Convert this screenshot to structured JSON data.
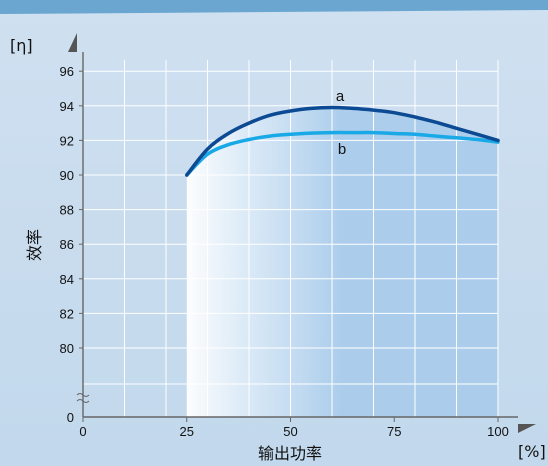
{
  "chart_data": {
    "type": "line",
    "title": "",
    "xlabel": "输出功率",
    "ylabel": "效率",
    "x_unit": "[%]",
    "y_unit": "[η]",
    "xlim": [
      0,
      100
    ],
    "ylim": [
      78,
      96
    ],
    "x_ticks": [
      0,
      25,
      50,
      75,
      100
    ],
    "y_ticks": [
      80,
      82,
      84,
      86,
      88,
      90,
      92,
      94,
      96
    ],
    "y_zero_label": "0",
    "grid": true,
    "series": [
      {
        "name": "a",
        "color": "#0c4a94",
        "x": [
          25,
          30,
          35,
          40,
          45,
          50,
          55,
          60,
          65,
          70,
          75,
          80,
          85,
          90,
          95,
          100
        ],
        "y": [
          90.0,
          91.5,
          92.4,
          93.0,
          93.45,
          93.7,
          93.85,
          93.9,
          93.85,
          93.75,
          93.6,
          93.35,
          93.05,
          92.7,
          92.35,
          92.0
        ]
      },
      {
        "name": "b",
        "color": "#19a9e6",
        "x": [
          25,
          30,
          35,
          40,
          45,
          50,
          55,
          60,
          65,
          70,
          75,
          80,
          85,
          90,
          95,
          100
        ],
        "y": [
          90.0,
          91.2,
          91.75,
          92.05,
          92.25,
          92.35,
          92.42,
          92.45,
          92.45,
          92.45,
          92.4,
          92.35,
          92.25,
          92.15,
          92.05,
          91.9
        ]
      }
    ]
  }
}
